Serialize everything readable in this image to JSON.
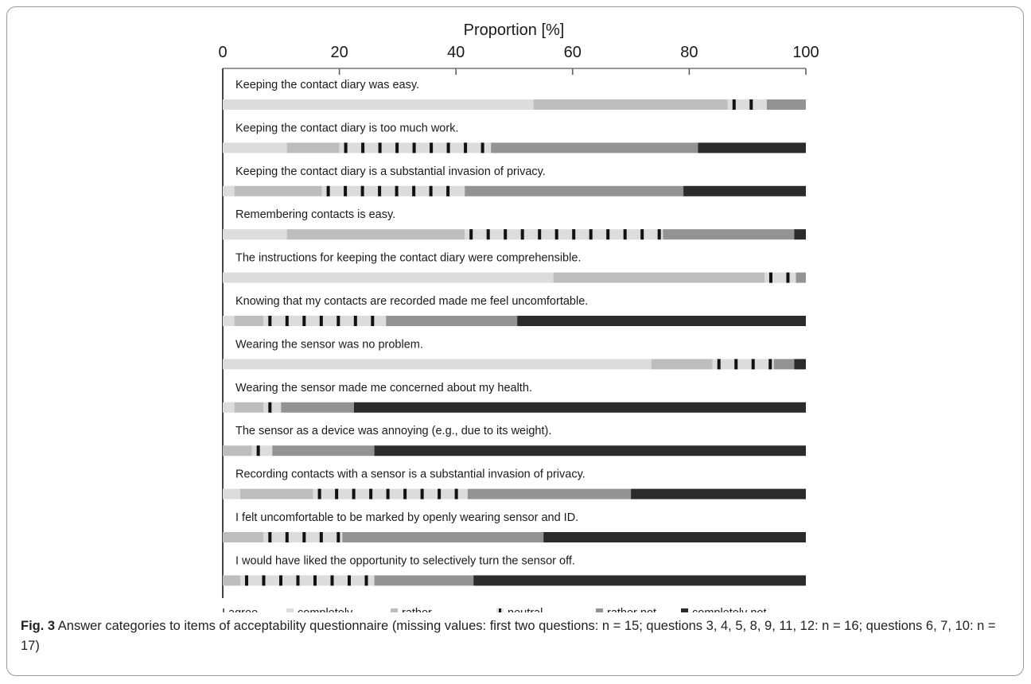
{
  "chart_data": {
    "type": "bar",
    "orientation": "horizontal",
    "stacked": true,
    "title": "Proportion [%]",
    "xlim": [
      0,
      100
    ],
    "xticks": [
      "0",
      "20",
      "40",
      "60",
      "80",
      "100"
    ],
    "legend_prefix": "I agree...",
    "legend_position": "bottom",
    "colors": {
      "completely": "#dcdcdc",
      "rather": "#bdbdbd",
      "neutral": "#dcdcdc",
      "neutral_dash": "#111111",
      "rather not": "#939393",
      "completely not": "#2b2b2b"
    },
    "series_names": [
      "completely",
      "rather",
      "neutral",
      "rather not",
      "completely not"
    ],
    "items": [
      {
        "label": "Keeping the contact diary was easy.",
        "values": [
          53.3,
          33.3,
          6.7,
          6.7,
          0
        ]
      },
      {
        "label": "Keeping the contact diary is too much work.",
        "values": [
          11,
          9,
          26,
          35.5,
          18.5
        ]
      },
      {
        "label": "Keeping the contact diary is a substantial invasion of privacy.",
        "values": [
          2,
          15,
          24.5,
          37.5,
          21
        ]
      },
      {
        "label": "Remembering contacts is easy.",
        "values": [
          11,
          30.5,
          34,
          22.5,
          2
        ]
      },
      {
        "label": "The instructions for keeping the contact diary were comprehensible.",
        "values": [
          56.7,
          36.2,
          5.4,
          1.7,
          0
        ]
      },
      {
        "label": "Knowing that my contacts are recorded made me feel uncomfortable.",
        "values": [
          2,
          5,
          21,
          22.5,
          49.5
        ]
      },
      {
        "label": "Wearing the sensor was no problem.",
        "values": [
          73.5,
          10.5,
          10.5,
          3.5,
          2
        ]
      },
      {
        "label": "Wearing the sensor made me concerned about my health.",
        "values": [
          2,
          5,
          3,
          12.5,
          77.5
        ]
      },
      {
        "label": "The sensor as a device was annoying (e.g., due to its weight).",
        "values": [
          0,
          5,
          3.5,
          17.5,
          74
        ]
      },
      {
        "label": "Recording contacts with a sensor is a substantial invasion of privacy.",
        "values": [
          3,
          12.5,
          26.5,
          28,
          30
        ]
      },
      {
        "label": "I felt uncomfortable to be marked by openly wearing sensor and ID.",
        "values": [
          0,
          7,
          13.5,
          34.5,
          45
        ]
      },
      {
        "label": "I would have liked the opportunity to selectively turn the sensor off.",
        "values": [
          0,
          3,
          23,
          17,
          57
        ]
      }
    ]
  },
  "caption": {
    "label": "Fig. 3",
    "text": " Answer categories to items of acceptability questionnaire (missing values: first two questions: n = 15; questions 3, 4, 5, 8, 9, 11, 12: n = 16; questions 6, 7, 10: n = 17)"
  }
}
